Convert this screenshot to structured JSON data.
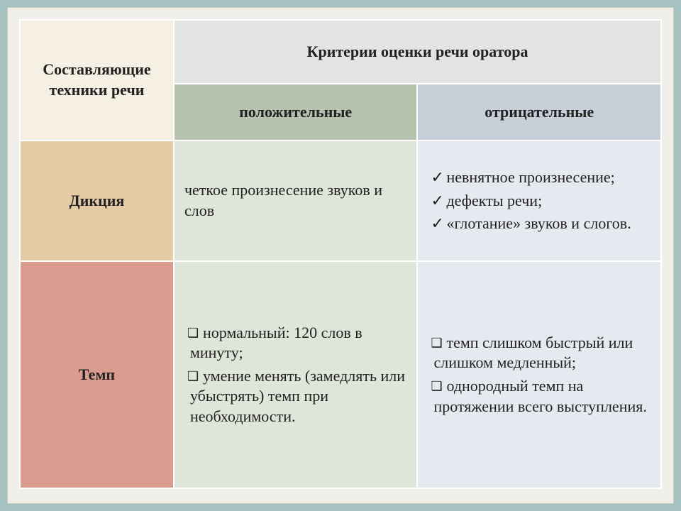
{
  "table": {
    "type": "table",
    "colors": {
      "slide_bg": "#a5c2c0",
      "panel_bg": "#f1efe9",
      "panel_border": "#cfcabc",
      "cell_border": "#ffffff",
      "hdr_components_bg": "#f6f0e4",
      "hdr_criteria_bg": "#e3e5e4",
      "hdr_positive_bg": "#b4c2ae",
      "hdr_negative_bg": "#c7cfd9",
      "row1_label_bg": "#e5cba5",
      "row2_label_bg": "#d99c8f",
      "cell_positive_bg": "#dfe5d8",
      "cell_negative_bg": "#e6eaf0",
      "text": "#222222"
    },
    "font": {
      "family": "Georgia",
      "body_size_pt": 17,
      "header_weight": "bold"
    },
    "column_widths_pct": [
      24,
      38,
      38
    ],
    "headers": {
      "components": "Составляющие техники речи",
      "criteria_span": "Критерии оценки речи оратора",
      "positive": "положительные",
      "negative": "отрицательные"
    },
    "rows": [
      {
        "label": "Дикция",
        "positive": {
          "kind": "plain",
          "text": "четкое произнесение звуков и слов"
        },
        "negative": {
          "kind": "check-list",
          "items": [
            "невнятное произнесение;",
            "дефекты речи;",
            "«глотание» звуков и слогов."
          ]
        }
      },
      {
        "label": "Темп",
        "positive": {
          "kind": "square-list",
          "items": [
            "нормальный: 120 слов в минуту;",
            "умение менять (замедлять или убыстрять) темп при необходимости."
          ]
        },
        "negative": {
          "kind": "square-list",
          "items": [
            "темп слишком быстрый или слишком медленный;",
            "однородный темп на протяжении всего выступления."
          ]
        }
      }
    ]
  }
}
